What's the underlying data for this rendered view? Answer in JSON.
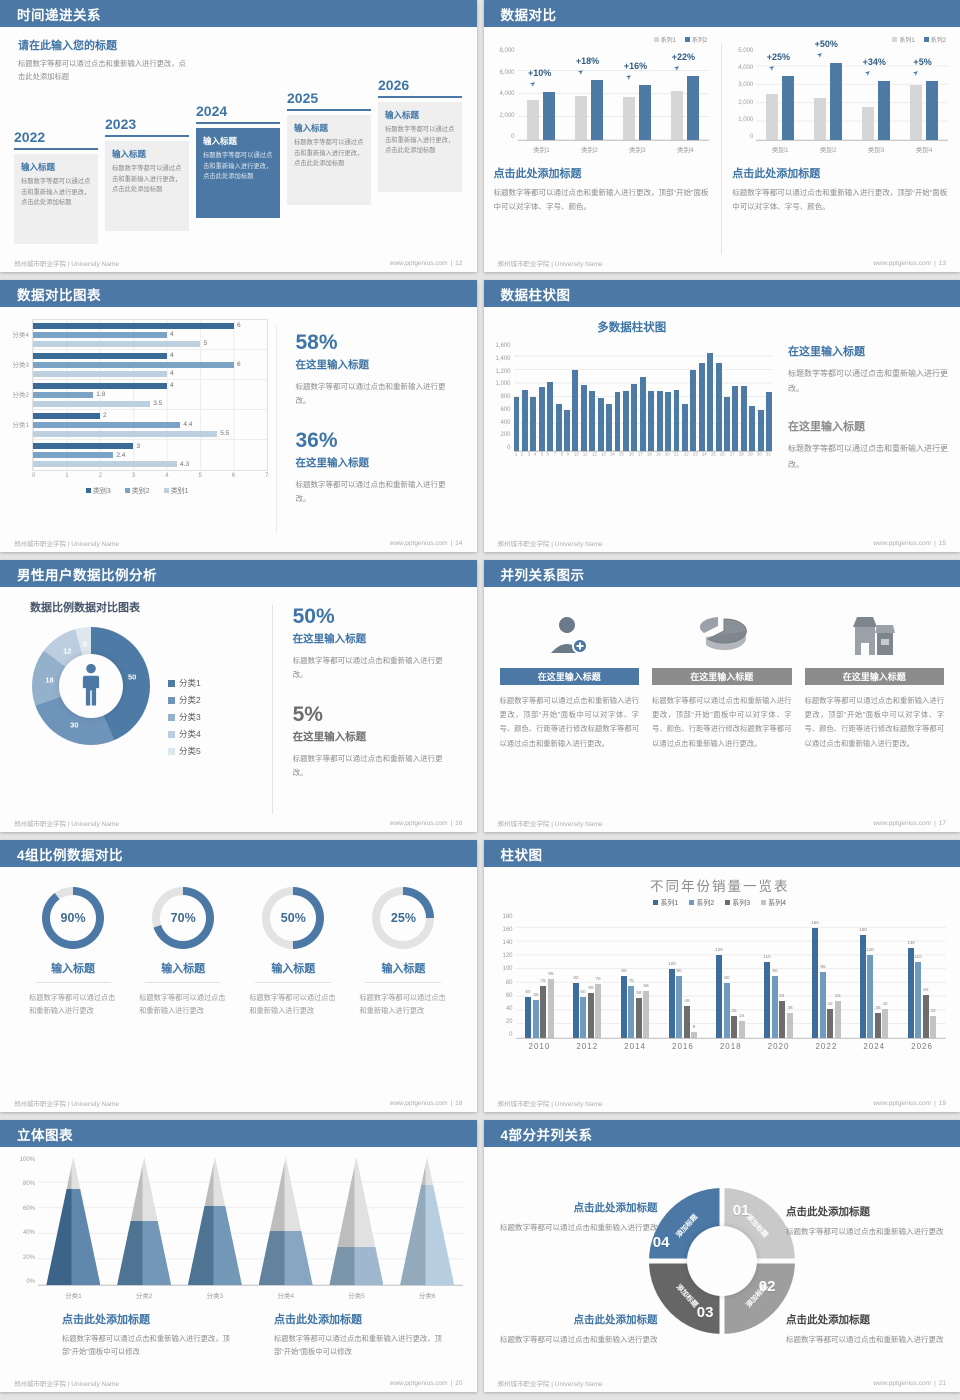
{
  "page": {
    "background": "#e4e4e4"
  },
  "theme": {
    "header_blue": "#4b78a4",
    "accent_blue": "#3e74a6",
    "bar_blue": "#4d7ba6",
    "gray_series": "#d6d6d6",
    "body_gray": "#8c8c8c"
  },
  "footer": {
    "left": "郑州城市职业学院 | University Name",
    "site": "www.pptgenius.com",
    "sep": "|"
  },
  "slides": {
    "s12": {
      "page": "12",
      "title": "时间递进关系",
      "intro_title": "请在此输入您的标题",
      "intro_body": "标题数字等都可以通过点击和重新输入进行更改，点击此处添加标题",
      "items": [
        {
          "year": "2022",
          "title": "输入标题",
          "body": "标题数字等都可以通过点击和重新输入进行更改，点击此处添加标题",
          "highlight": false
        },
        {
          "year": "2023",
          "title": "输入标题",
          "body": "标题数字等都可以通过点击和重新输入进行更改，点击此处添加标题",
          "highlight": false
        },
        {
          "year": "2024",
          "title": "输入标题",
          "body": "标题数字等都可以通过点击和重新输入进行更改，点击此处添加标题",
          "highlight": true
        },
        {
          "year": "2025",
          "title": "输入标题",
          "body": "标题数字等都可以通过点击和重新输入进行更改，点击此处添加标题",
          "highlight": false
        },
        {
          "year": "2026",
          "title": "输入标题",
          "body": "标题数字等都可以通过点击和重新输入进行更改，点击此处添加标题",
          "highlight": false
        }
      ]
    },
    "s13": {
      "page": "13",
      "title": "数据对比",
      "caption_title": "点击此处添加标题",
      "caption_body": "标题数字等都可以通过点击和重新输入进行更改，顶部“开始”面板中可以对字体、字号、颜色。"
    },
    "s14": {
      "page": "14",
      "title": "数据对比图表",
      "stats": [
        {
          "pct": "58%",
          "title": "在这里输入标题",
          "body": "标题数字等都可以通过点击和重新输入进行更改。",
          "muted": false
        },
        {
          "pct": "36%",
          "title": "在这里输入标题",
          "body": "标题数字等都可以通过点击和重新输入进行更改。",
          "muted": false
        }
      ]
    },
    "s15": {
      "page": "15",
      "title": "数据柱状图",
      "blocks": [
        {
          "title": "在这里输入标题",
          "body": "标题数字等都可以通过点击和重新输入进行更改。",
          "muted": false
        },
        {
          "title": "在这里输入标题",
          "body": "标题数字等都可以通过点击和重新输入进行更改。",
          "muted": true
        }
      ]
    },
    "s16": {
      "page": "16",
      "title": "男性用户数据比例分析",
      "stats": [
        {
          "pct": "50%",
          "title": "在这里输入标题",
          "body": "标题数字等都可以通过点击和重新输入进行更改。",
          "muted": false
        },
        {
          "pct": "5%",
          "title": "在这里输入标题",
          "body": "标题数字等都可以通过点击和重新输入进行更改。",
          "muted": true
        }
      ]
    },
    "s17": {
      "page": "17",
      "title": "并列关系图示",
      "cards": [
        {
          "icon": "person-add-icon",
          "title": "在这里输入标题",
          "body": "标题数字等都可以通过点击和重新输入进行更改，顶部“开始”面板中可以对字体、字号、颜色、行距等进行修改标题数字等都可以通过点击和重新输入进行更改。",
          "accent": true
        },
        {
          "icon": "pie-3d-icon",
          "title": "在这里输入标题",
          "body": "标题数字等都可以通过点击和重新输入进行更改，顶部“开始”面板中可以对字体、字号、颜色、行距等进行修改标题数字等都可以通过点击和重新输入进行更改。",
          "accent": false
        },
        {
          "icon": "building-icon",
          "title": "在这里输入标题",
          "body": "标题数字等都可以通过点击和重新输入进行更改，顶部“开始”面板中可以对字体、字号、颜色、行距等进行修改标题数字等都可以通过点击和重新输入进行更改。",
          "accent": false
        }
      ]
    },
    "s18": {
      "page": "18",
      "title": "4组比例数据对比",
      "item_title": "输入标题",
      "item_body": "标题数字等都可以通过点击和重新输入进行更改",
      "percents": [
        "90%",
        "70%",
        "50%",
        "25%"
      ]
    },
    "s19": {
      "page": "19",
      "title": "柱状图"
    },
    "s20": {
      "page": "20",
      "title": "立体图表",
      "captions": [
        {
          "title": "点击此处添加标题",
          "body": "标题数字等都可以通过点击和重新输入进行更改，顶部“开始”面板中可以修改"
        },
        {
          "title": "点击此处添加标题",
          "body": "标题数字等都可以通过点击和重新输入进行更改，顶部“开始”面板中可以修改"
        }
      ]
    },
    "s21": {
      "page": "21",
      "title": "4部分并列关系",
      "blocks": [
        {
          "title": "点击此处添加标题",
          "body": "标题数字等都可以通过点击和重新输入进行更改"
        },
        {
          "title": "点击此处添加标题",
          "body": "标题数字等都可以通过点击和重新输入进行更改"
        },
        {
          "title": "点击此处添加标题",
          "body": "标题数字等都可以通过点击和重新输入进行更改"
        },
        {
          "title": "点击此处添加标题",
          "body": "标题数字等都可以通过点击和重新输入进行更改"
        }
      ],
      "segments": [
        {
          "num": "01",
          "label": "添加标题",
          "color": "#c9c9c9"
        },
        {
          "num": "02",
          "label": "添加标题",
          "color": "#9e9e9e"
        },
        {
          "num": "03",
          "label": "添加标题",
          "color": "#666666"
        },
        {
          "num": "04",
          "label": "添加标题",
          "color": "#4b78a4"
        }
      ]
    }
  },
  "chart_data": [
    {
      "id": "c13a",
      "type": "bar",
      "slide": "13-left",
      "categories": [
        "类别1",
        "类别2",
        "类别3",
        "类别4"
      ],
      "series": [
        {
          "name": "系列1",
          "color": "#d6d6d6",
          "values": [
            3500,
            3800,
            3700,
            4300
          ]
        },
        {
          "name": "系列2",
          "color": "#4d7ba6",
          "values": [
            4200,
            5200,
            4800,
            5600
          ]
        }
      ],
      "growth_labels": [
        "+10%",
        "+18%",
        "+16%",
        "+22%"
      ],
      "ylim": [
        0,
        8000
      ],
      "yticks": [
        "0",
        "2,000",
        "4,000",
        "6,000",
        "8,000"
      ]
    },
    {
      "id": "c13b",
      "type": "bar",
      "slide": "13-right",
      "categories": [
        "类别1",
        "类别2",
        "类别3",
        "类别4"
      ],
      "series": [
        {
          "name": "系列1",
          "color": "#d6d6d6",
          "values": [
            2500,
            2300,
            1800,
            3000
          ]
        },
        {
          "name": "系列2",
          "color": "#4d7ba6",
          "values": [
            3500,
            4200,
            3200,
            3200
          ]
        }
      ],
      "growth_labels": [
        "+25%",
        "+50%",
        "+34%",
        "+5%"
      ],
      "ylim": [
        0,
        5000
      ],
      "yticks": [
        "0",
        "1,000",
        "2,000",
        "3,000",
        "4,000",
        "5,000"
      ]
    },
    {
      "id": "c14",
      "type": "bar",
      "variant": "horizontal",
      "slide": "14",
      "groups": [
        "分类4",
        "分类3",
        "分类2",
        "分类1",
        ""
      ],
      "series": [
        {
          "name": "类别3",
          "color": "#3a6a96",
          "values": [
            6,
            4,
            4,
            2,
            3
          ]
        },
        {
          "name": "类别2",
          "color": "#7ba3c6",
          "values": [
            4,
            6,
            1.8,
            4.4,
            2.4
          ]
        },
        {
          "name": "类别1",
          "color": "#bcd0e0",
          "values": [
            5,
            4,
            3.5,
            5.5,
            4.3
          ]
        }
      ],
      "xlim": [
        0,
        7
      ],
      "xticks": [
        "0",
        "1",
        "2",
        "3",
        "4",
        "5",
        "6",
        "7"
      ]
    },
    {
      "id": "c15",
      "type": "bar",
      "slide": "15",
      "title": "多数据柱状图",
      "color": "#4d7ba6",
      "x": [
        "1",
        "2",
        "3",
        "4",
        "5",
        "6",
        "7",
        "8",
        "9",
        "10",
        "11",
        "12",
        "13",
        "14",
        "15",
        "16",
        "17",
        "18",
        "19",
        "20",
        "21",
        "22",
        "23",
        "24",
        "25",
        "26",
        "27",
        "28",
        "29",
        "30",
        "31"
      ],
      "values": [
        800,
        900,
        800,
        950,
        1020,
        700,
        600,
        1200,
        980,
        890,
        780,
        700,
        880,
        890,
        990,
        1100,
        890,
        890,
        880,
        900,
        700,
        1200,
        1300,
        1450,
        1300,
        800,
        960,
        970,
        660,
        600,
        870
      ],
      "ylim": [
        0,
        1600
      ],
      "yticks": [
        "0",
        "200",
        "400",
        "600",
        "800",
        "1,000",
        "1,200",
        "1,400",
        "1,600"
      ]
    },
    {
      "id": "c16",
      "type": "pie",
      "variant": "donut",
      "slide": "16",
      "title": "数据比例数据对比图表",
      "labels": [
        "分类1",
        "分类2",
        "分类3",
        "分类4",
        "分类5"
      ],
      "values": [
        50,
        30,
        18,
        12,
        5
      ],
      "colors": [
        "#4d7ba6",
        "#6f94ba",
        "#93b1cb",
        "#bccddf",
        "#dfe7ee"
      ]
    },
    {
      "id": "c18",
      "type": "pie",
      "variant": "progress-rings",
      "slide": "18",
      "values": [
        90,
        70,
        50,
        25
      ],
      "color": "#4b78a4",
      "track": "#e3e3e3"
    },
    {
      "id": "c19",
      "type": "bar",
      "slide": "19",
      "title": "不同年份销量一览表",
      "categories": [
        "2010",
        "2012",
        "2014",
        "2016",
        "2018",
        "2020",
        "2022",
        "2024",
        "2026"
      ],
      "series": [
        {
          "name": "系列1",
          "color": "#3e6d9c",
          "values": [
            60,
            80,
            90,
            100,
            120,
            110,
            160,
            150,
            130
          ]
        },
        {
          "name": "系列2",
          "color": "#6f9bc0",
          "values": [
            55,
            60,
            75,
            90,
            80,
            90,
            96,
            120,
            110
          ]
        },
        {
          "name": "系列3",
          "color": "#6d6d6d",
          "values": [
            75,
            65,
            58,
            46,
            32,
            54,
            42,
            36,
            62
          ]
        },
        {
          "name": "系列4",
          "color": "#c3c3c3",
          "values": [
            85,
            78,
            68,
            8,
            24,
            36,
            53,
            42,
            32
          ]
        }
      ],
      "ylim": [
        0,
        180
      ],
      "yticks": [
        "0",
        "20",
        "40",
        "60",
        "80",
        "100",
        "120",
        "140",
        "160",
        "180"
      ]
    },
    {
      "id": "c20",
      "type": "bar",
      "variant": "pyramid",
      "slide": "20",
      "categories": [
        "分类1",
        "分类2",
        "分类3",
        "分类4",
        "分类5",
        "分类6"
      ],
      "values_pct": [
        75,
        50,
        62,
        42,
        30,
        78
      ],
      "colors": [
        "#46749f",
        "#5c86ab",
        "#5c86ab",
        "#7397b7",
        "#8fadc7",
        "#aac6db"
      ],
      "yticks": [
        "0%",
        "20%",
        "40%",
        "60%",
        "80%",
        "100%"
      ]
    }
  ]
}
